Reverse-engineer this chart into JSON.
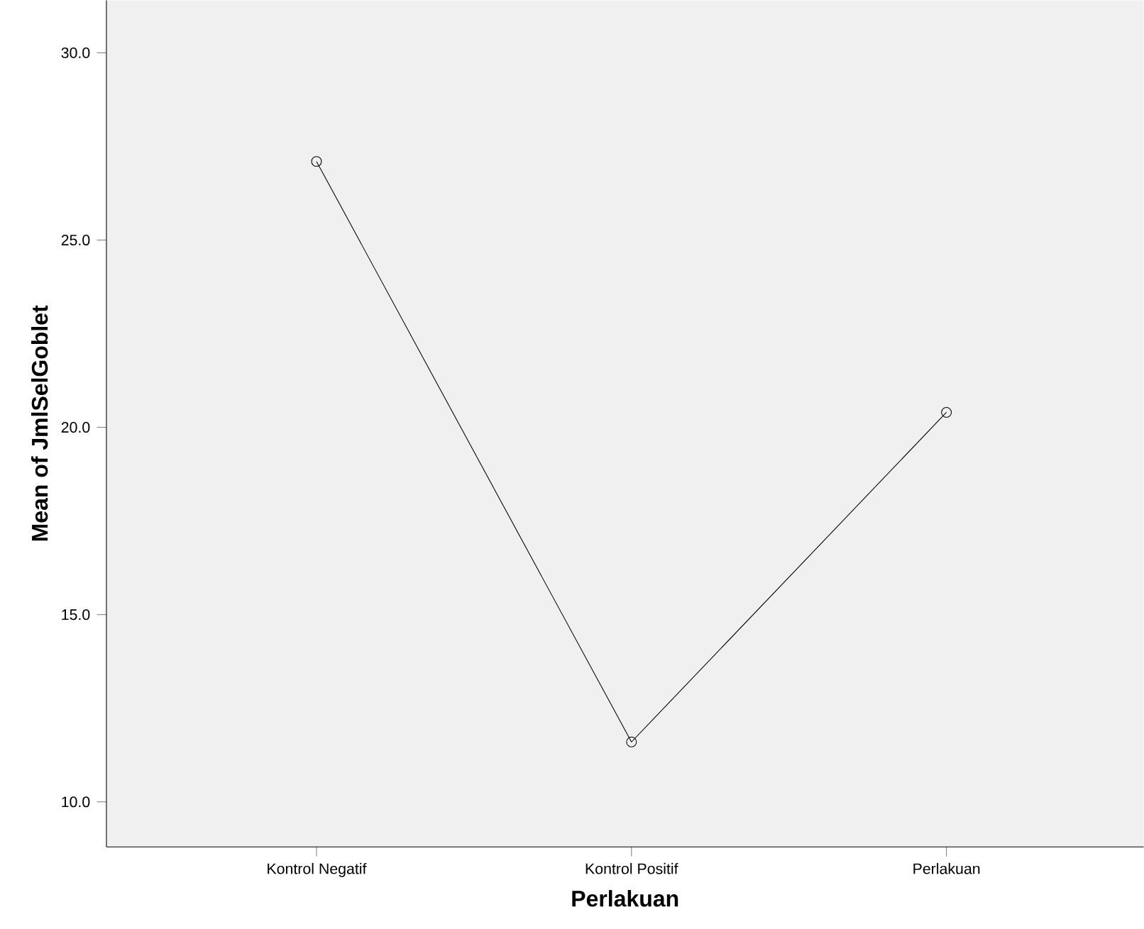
{
  "chart_data": {
    "type": "line",
    "xlabel": "Perlakuan",
    "ylabel": "Mean of JmlSelGoblet",
    "categories": [
      "Kontrol Negatif",
      "Kontrol Positif",
      "Perlakuan"
    ],
    "values": [
      27.1,
      11.6,
      20.4
    ],
    "color": "#000000",
    "marker": "circle",
    "line_style": "solid",
    "ylim": [
      8.8,
      31.4
    ],
    "yticks": [
      {
        "value": 10,
        "label": "10.0"
      },
      {
        "value": 15,
        "label": "15.0"
      },
      {
        "value": 20,
        "label": "20.0"
      },
      {
        "value": 25,
        "label": "25.0"
      },
      {
        "value": 30,
        "label": "30.0"
      }
    ],
    "grid": false
  }
}
